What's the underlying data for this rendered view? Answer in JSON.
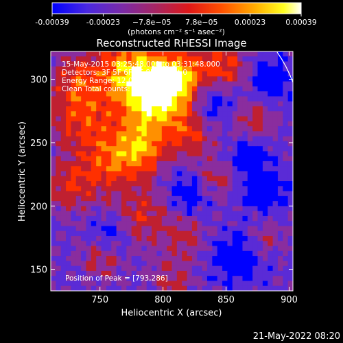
{
  "chart_data": {
    "type": "heatmap",
    "title": "Reconstructed RHESSI Image",
    "xlabel": "Heliocentric X (arcsec)",
    "ylabel": "Heliocentric Y (arcsec)",
    "xlim": [
      711,
      903
    ],
    "ylim": [
      133,
      322
    ],
    "x_ticks": [
      750,
      800,
      850,
      900
    ],
    "y_ticks": [
      150,
      200,
      250,
      300
    ],
    "colorbar": {
      "ticks": [
        "-0.00039",
        "-0.00023",
        "−7.8e−05",
        "7.8e−05",
        "0.00023",
        "0.00039"
      ],
      "tick_values": [
        -0.00039,
        -0.00023,
        -7.8e-05,
        7.8e-05,
        0.00023,
        0.00039
      ],
      "label": "(photons cm⁻² s⁻¹ asec⁻²)",
      "range": [
        -0.00039,
        0.00039
      ],
      "colors": [
        "#0000ff",
        "#5a2bd6",
        "#8a2d9e",
        "#c02030",
        "#ff3000",
        "#ff9000",
        "#ffff00",
        "#ffffff"
      ]
    },
    "info_lines": [
      "15-May-2015 03:25:48.000 to 03:31:48.000",
      "Detectors: 3F 5F 6F 7F 8F 9F, Att 0",
      "Energy Range: 12.0 - 25.0 keV",
      "Clean     Total counts: 2.19E+04"
    ],
    "peak_label": "Position of Peak = [793,286]",
    "peak": [
      793,
      286
    ]
  },
  "timestamp": "21-May-2022 08:20"
}
